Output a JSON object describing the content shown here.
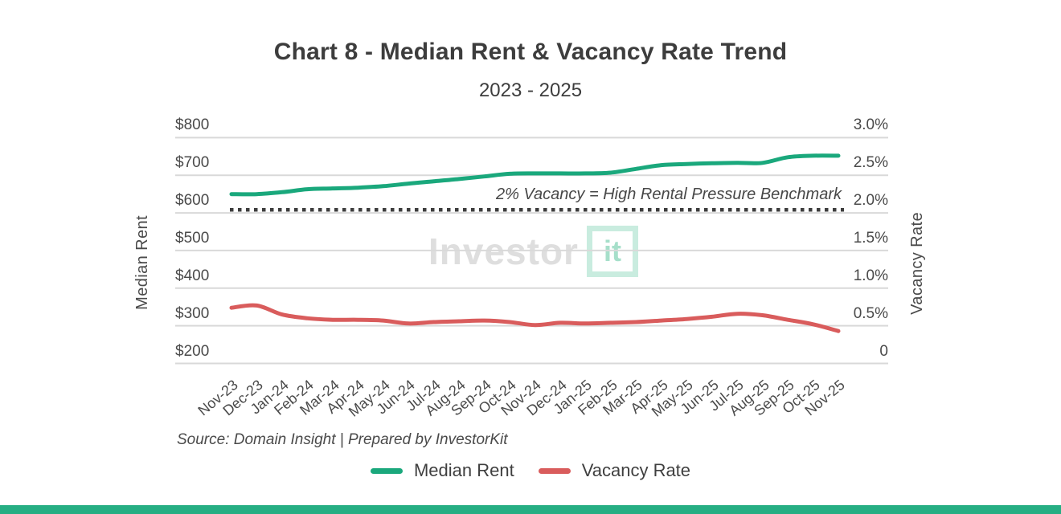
{
  "header": {
    "title": "Chart 8 - Median Rent & Vacancy Rate Trend",
    "subtitle": "2023 - 2025"
  },
  "chart_data": {
    "type": "line",
    "categories": [
      "Nov-23",
      "Dec-23",
      "Jan-24",
      "Feb-24",
      "Mar-24",
      "Apr-24",
      "May-24",
      "Jun-24",
      "Jul-24",
      "Aug-24",
      "Sep-24",
      "Oct-24",
      "Nov-24",
      "Dec-24",
      "Jan-25",
      "Feb-25",
      "Mar-25",
      "Apr-25",
      "May-25",
      "Jun-25",
      "Jul-25",
      "Aug-25",
      "Sep-25",
      "Oct-25",
      "Nov-25"
    ],
    "series": [
      {
        "name": "Median Rent",
        "axis": "left",
        "color": "#1aa87c",
        "values": [
          650,
          650,
          655,
          663,
          665,
          667,
          671,
          678,
          684,
          690,
          697,
          704,
          705,
          705,
          705,
          707,
          717,
          727,
          730,
          732,
          733,
          733,
          748,
          752,
          752
        ]
      },
      {
        "name": "Vacancy Rate",
        "axis": "right",
        "color": "#d95c5c",
        "values": [
          0.74,
          0.77,
          0.65,
          0.6,
          0.58,
          0.58,
          0.57,
          0.53,
          0.55,
          0.56,
          0.57,
          0.55,
          0.51,
          0.54,
          0.53,
          0.54,
          0.55,
          0.57,
          0.59,
          0.62,
          0.66,
          0.64,
          0.58,
          0.52,
          0.43
        ]
      }
    ],
    "left_axis": {
      "label": "Median Rent",
      "ticks": [
        "$200",
        "$300",
        "$400",
        "$500",
        "$600",
        "$700",
        "$800"
      ],
      "range": [
        200,
        800
      ]
    },
    "right_axis": {
      "label": "Vacancy Rate",
      "ticks": [
        "0",
        "0.5%",
        "1.0%",
        "1.5%",
        "2.0%",
        "2.5%",
        "3.0%"
      ],
      "range": [
        0,
        3.0
      ]
    },
    "benchmark": {
      "value_right_axis": 2.0,
      "label": "2% Vacancy = High Rental Pressure Benchmark",
      "color": "#3d3d3d"
    },
    "grid": true,
    "legend_position": "bottom"
  },
  "watermark": {
    "text": "Investor",
    "boxed_text": "it"
  },
  "footer": {
    "source": "Source: Domain Insight | Prepared by InvestorKit"
  },
  "legend": {
    "items": [
      {
        "label": "Median Rent",
        "color": "#1aa87c"
      },
      {
        "label": "Vacancy Rate",
        "color": "#d95c5c"
      }
    ]
  },
  "colors": {
    "grid": "#d9d9d9",
    "accent_bar": "#26ae83",
    "title_text": "#3d3d3d",
    "axis_text": "#4a4a4a"
  }
}
